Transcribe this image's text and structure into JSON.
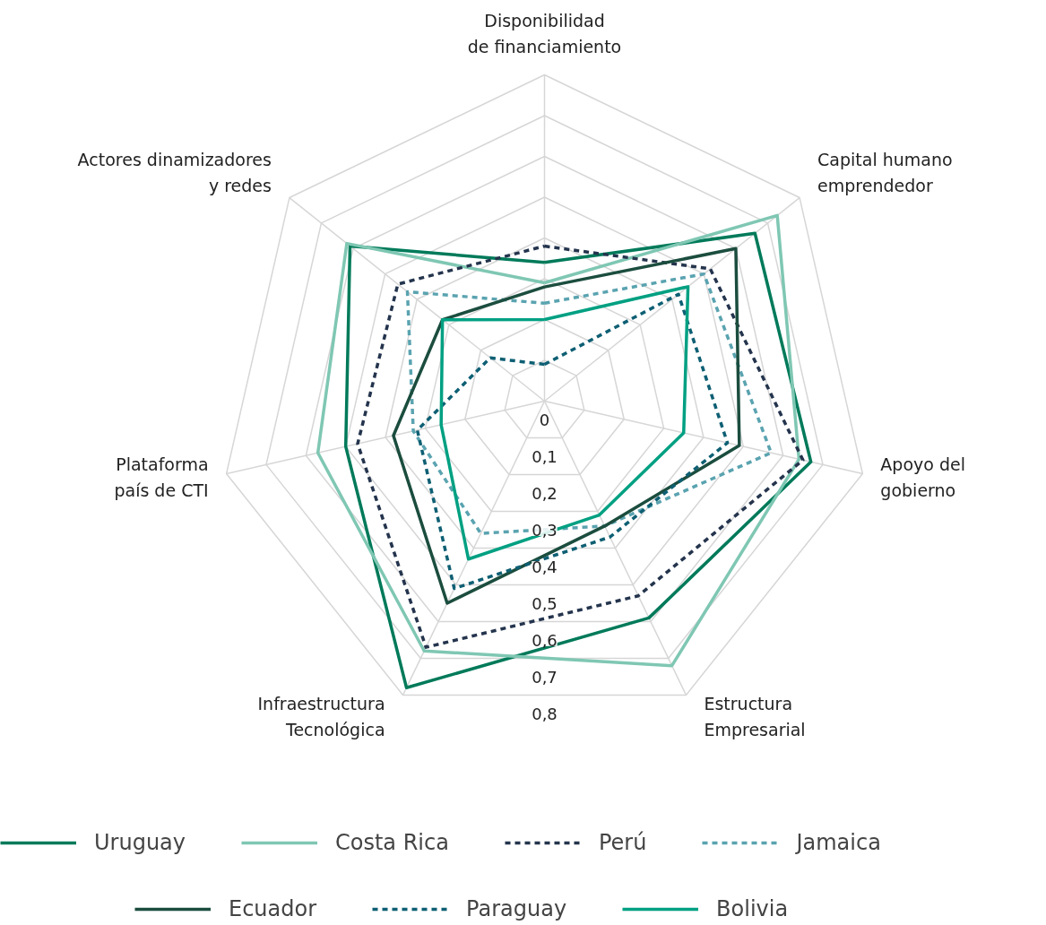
{
  "chart_data": {
    "type": "radar",
    "categories": [
      "Disponibilidad\nde financiamiento",
      "Capital humano\nemprendedor",
      "Apoyo del\ngobierno",
      "Estructura\nEmpresarial",
      "Infraestructura\nTecnológica",
      "Plataforma\npaís de CTI",
      "Actores dinamizadores\ny redes"
    ],
    "ylim": [
      0,
      0.8
    ],
    "yticks": [
      {
        "value": 0,
        "label": "0"
      },
      {
        "value": 0.1,
        "label": "0,1"
      },
      {
        "value": 0.2,
        "label": "0,2"
      },
      {
        "value": 0.3,
        "label": "0,3"
      },
      {
        "value": 0.4,
        "label": "0,4"
      },
      {
        "value": 0.5,
        "label": "0,5"
      },
      {
        "value": 0.6,
        "label": "0,6"
      },
      {
        "value": 0.7,
        "label": "0,7"
      },
      {
        "value": 0.8,
        "label": "0,8"
      }
    ],
    "grid": true,
    "legend": "bottom",
    "marker": "none",
    "series": [
      {
        "name": "Uruguay",
        "color": "#007a5a",
        "line_style": "solid",
        "values": [
          0.34,
          0.66,
          0.67,
          0.59,
          0.78,
          0.5,
          0.61
        ]
      },
      {
        "name": "Costa Rica",
        "color": "#7fc7b3",
        "line_style": "solid",
        "values": [
          0.29,
          0.73,
          0.64,
          0.72,
          0.68,
          0.57,
          0.62
        ]
      },
      {
        "name": "Perú",
        "color": "#24344d",
        "line_style": "dashed",
        "values": [
          0.38,
          0.52,
          0.65,
          0.53,
          0.67,
          0.47,
          0.46
        ]
      },
      {
        "name": "Jamaica",
        "color": "#5aa3b0",
        "line_style": "dashed",
        "values": [
          0.24,
          0.5,
          0.57,
          0.34,
          0.36,
          0.33,
          0.43
        ]
      },
      {
        "name": "Ecuador",
        "color": "#1b4d3e",
        "line_style": "solid",
        "values": [
          0.28,
          0.6,
          0.49,
          0.34,
          0.55,
          0.38,
          0.32
        ]
      },
      {
        "name": "Paraguay",
        "color": "#0e5f73",
        "line_style": "dashed",
        "values": [
          0.09,
          0.42,
          0.46,
          0.37,
          0.51,
          0.32,
          0.17
        ]
      },
      {
        "name": "Bolivia",
        "color": "#00a082",
        "line_style": "solid",
        "values": [
          0.2,
          0.45,
          0.35,
          0.31,
          0.43,
          0.26,
          0.32
        ]
      }
    ]
  }
}
